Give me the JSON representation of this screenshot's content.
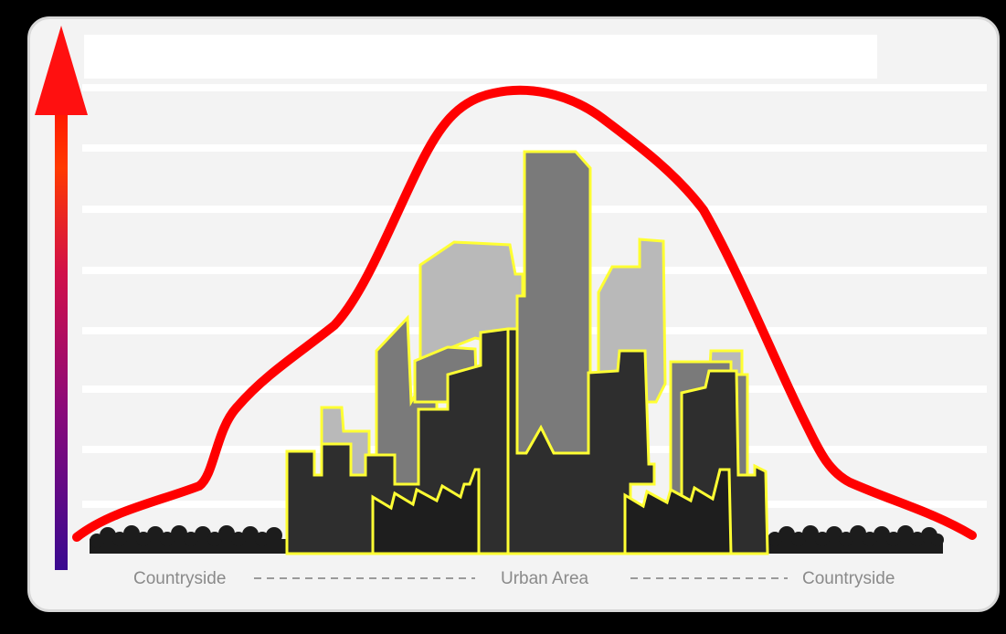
{
  "labels": {
    "left": "Countryside",
    "center": "Urban Area",
    "right": "Countryside"
  },
  "colors": {
    "curve": "#ff0000",
    "building_outline": "#ffff33",
    "building_dark": "#2e2e2e",
    "building_mid": "#7a7a7a",
    "building_light": "#b9b9b9",
    "arrow_top": "#ff1a00",
    "arrow_bottom": "#4a0a8c"
  },
  "icons": {
    "arrow": "vertical-gradient-arrow-icon",
    "trees": "tree-row-icon"
  }
}
